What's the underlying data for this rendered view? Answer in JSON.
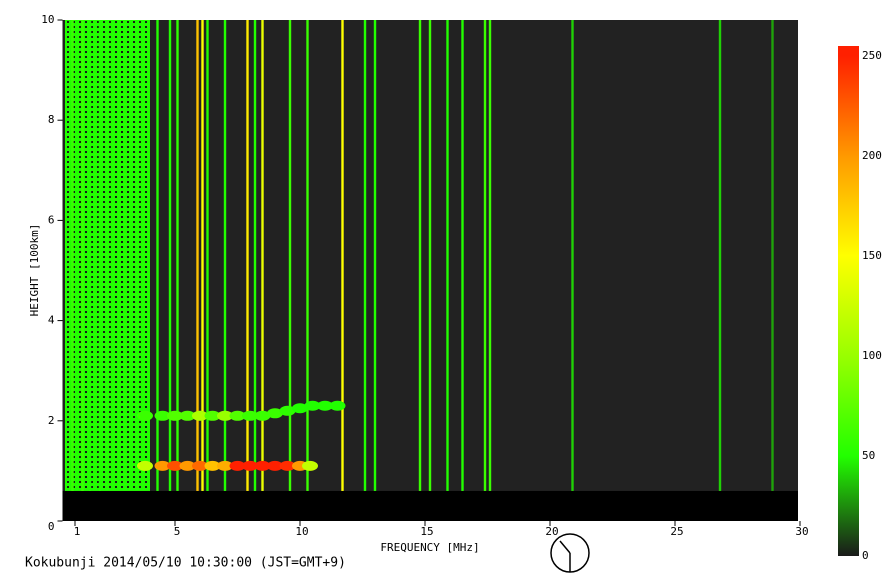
{
  "chart_data": {
    "type": "ionogram",
    "xlabel": "FREQUENCY [MHz]",
    "ylabel": "HEIGHT [100km]",
    "caption": "Kokubunji 2014/05/10 10:30:00 (JST=GMT+9)",
    "xlim": [
      0.5,
      30
    ],
    "xticks": [
      1,
      5,
      10,
      15,
      20,
      25,
      30
    ],
    "ylim": [
      0,
      10
    ],
    "yticks": [
      0,
      2,
      4,
      6,
      8,
      10
    ],
    "blank_below": 0.6,
    "colorbar": {
      "lim": [
        0,
        255
      ],
      "ticks": [
        0,
        50,
        100,
        150,
        200,
        250
      ],
      "colors": [
        "#1a1a1a",
        "#22ff00",
        "#99ff00",
        "#ffff00",
        "#ff9900",
        "#ff2000"
      ]
    },
    "background_echo": {
      "x": [
        0.6,
        4.0
      ],
      "y": [
        0.6,
        10
      ],
      "value": 50
    },
    "lines": {
      "x": [
        0.9,
        1.3,
        1.6,
        2.0,
        4.3,
        4.8,
        5.1,
        5.9,
        6.1,
        6.3,
        7.0,
        7.9,
        8.2,
        8.5,
        9.6,
        10.3,
        11.7,
        12.6,
        13.0,
        14.8,
        15.2,
        15.9,
        16.5,
        17.4,
        17.6,
        20.9,
        26.8,
        28.9
      ],
      "values": [
        60,
        60,
        50,
        50,
        50,
        50,
        55,
        180,
        150,
        50,
        50,
        160,
        50,
        140,
        60,
        60,
        150,
        50,
        50,
        60,
        60,
        50,
        50,
        60,
        60,
        40,
        40,
        30
      ]
    },
    "traces": [
      {
        "x": [
          3.8,
          4.5,
          5,
          5.5,
          6,
          6.5,
          7,
          7.5,
          8,
          8.5,
          9,
          9.5,
          10,
          10.4
        ],
        "y": [
          1.1,
          1.1,
          1.1,
          1.1,
          1.1,
          1.1,
          1.1,
          1.1,
          1.1,
          1.1,
          1.1,
          1.1,
          1.1,
          1.1
        ],
        "values": [
          120,
          200,
          230,
          200,
          220,
          180,
          190,
          250,
          255,
          255,
          250,
          245,
          200,
          120
        ]
      },
      {
        "x": [
          3.8,
          4.5,
          5,
          5.5,
          6,
          6.5,
          7,
          7.5,
          8,
          8.5,
          9,
          9.5,
          10,
          10.5,
          11,
          11.5
        ],
        "y": [
          2.1,
          2.1,
          2.1,
          2.1,
          2.1,
          2.1,
          2.1,
          2.1,
          2.1,
          2.1,
          2.15,
          2.2,
          2.25,
          2.3,
          2.3,
          2.3
        ],
        "values": [
          60,
          60,
          70,
          70,
          110,
          70,
          100,
          70,
          60,
          60,
          60,
          55,
          50,
          50,
          50,
          50
        ]
      }
    ]
  }
}
